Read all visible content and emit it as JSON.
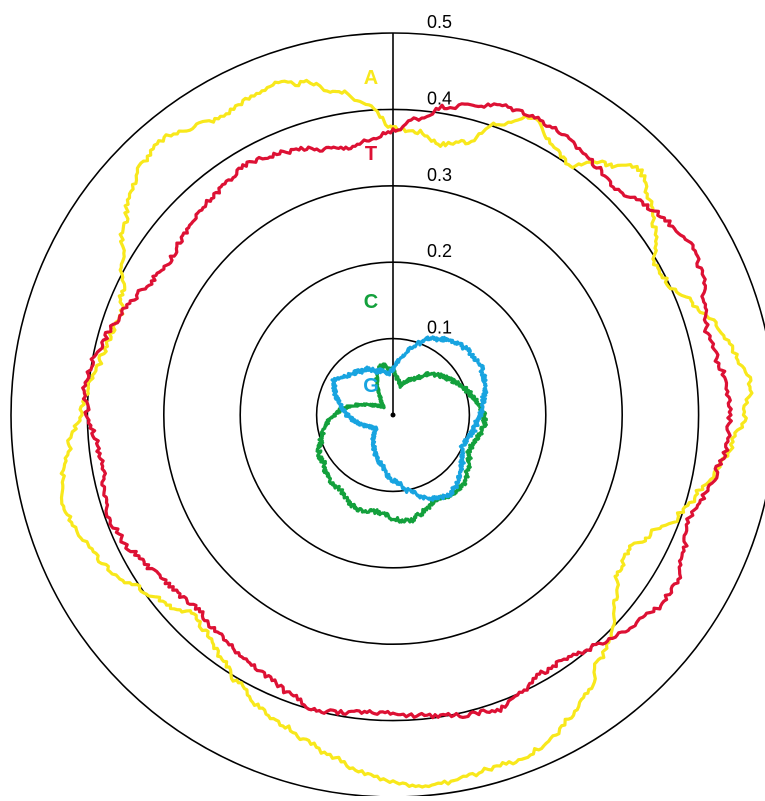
{
  "chart_data": {
    "type": "polar-line",
    "rmax": 0.5,
    "radial_ticks": [
      "0.1",
      "0.2",
      "0.3",
      "0.4",
      "0.5"
    ],
    "radial_tick_values": [
      0.1,
      0.2,
      0.3,
      0.4,
      0.5
    ],
    "legend": "labels-on-plot",
    "series": [
      {
        "name": "A",
        "color": "#f8e81c",
        "r": [
          0.375,
          0.372,
          0.36,
          0.37,
          0.405,
          0.43,
          0.412,
          0.4,
          0.43,
          0.455,
          0.44,
          0.42,
          0.395,
          0.4,
          0.42,
          0.44,
          0.455,
          0.47,
          0.46,
          0.445,
          0.43,
          0.41,
          0.395,
          0.37,
          0.355,
          0.36,
          0.38,
          0.405,
          0.42,
          0.445,
          0.46,
          0.475,
          0.48,
          0.48,
          0.485,
          0.49,
          0.48,
          0.47,
          0.455,
          0.44,
          0.43,
          0.42,
          0.405,
          0.39,
          0.375,
          0.37,
          0.385,
          0.4,
          0.42,
          0.43,
          0.44,
          0.45,
          0.44,
          0.425,
          0.41,
          0.4,
          0.39,
          0.385,
          0.38,
          0.39,
          0.41,
          0.43,
          0.45,
          0.465,
          0.47,
          0.46,
          0.45,
          0.455,
          0.46,
          0.45,
          0.43,
          0.41
        ]
      },
      {
        "name": "T",
        "color": "#dd1134",
        "r": [
          0.372,
          0.39,
          0.41,
          0.42,
          0.43,
          0.432,
          0.43,
          0.425,
          0.42,
          0.415,
          0.43,
          0.44,
          0.45,
          0.445,
          0.435,
          0.425,
          0.43,
          0.44,
          0.44,
          0.44,
          0.43,
          0.42,
          0.41,
          0.42,
          0.43,
          0.43,
          0.42,
          0.41,
          0.4,
          0.39,
          0.39,
          0.4,
          0.41,
          0.405,
          0.4,
          0.395,
          0.39,
          0.39,
          0.395,
          0.4,
          0.39,
          0.38,
          0.375,
          0.37,
          0.365,
          0.36,
          0.365,
          0.37,
          0.38,
          0.39,
          0.395,
          0.39,
          0.385,
          0.39,
          0.4,
          0.405,
          0.4,
          0.39,
          0.38,
          0.37,
          0.36,
          0.355,
          0.36,
          0.365,
          0.37,
          0.375,
          0.38,
          0.375,
          0.37,
          0.36,
          0.355,
          0.36
        ]
      },
      {
        "name": "C",
        "color": "#13a03c",
        "r": [
          0.06,
          0.05,
          0.045,
          0.04,
          0.045,
          0.05,
          0.055,
          0.06,
          0.07,
          0.075,
          0.08,
          0.085,
          0.09,
          0.095,
          0.1,
          0.105,
          0.11,
          0.115,
          0.12,
          0.12,
          0.118,
          0.115,
          0.11,
          0.11,
          0.115,
          0.12,
          0.125,
          0.13,
          0.13,
          0.128,
          0.125,
          0.125,
          0.13,
          0.135,
          0.14,
          0.138,
          0.135,
          0.13,
          0.128,
          0.13,
          0.132,
          0.13,
          0.125,
          0.12,
          0.12,
          0.118,
          0.115,
          0.11,
          0.11,
          0.108,
          0.1,
          0.095,
          0.09,
          0.085,
          0.075,
          0.07,
          0.06,
          0.05,
          0.04,
          0.03,
          0.025,
          0.02,
          0.018,
          0.02,
          0.025,
          0.03,
          0.04,
          0.05,
          0.06,
          0.065,
          0.065,
          0.06
        ]
      },
      {
        "name": "G",
        "color": "#18a4e0",
        "r": [
          0.06,
          0.07,
          0.08,
          0.09,
          0.1,
          0.11,
          0.115,
          0.12,
          0.125,
          0.128,
          0.13,
          0.13,
          0.132,
          0.13,
          0.128,
          0.125,
          0.12,
          0.118,
          0.115,
          0.11,
          0.108,
          0.105,
          0.1,
          0.1,
          0.105,
          0.11,
          0.115,
          0.12,
          0.125,
          0.128,
          0.125,
          0.12,
          0.115,
          0.105,
          0.1,
          0.09,
          0.085,
          0.08,
          0.07,
          0.065,
          0.06,
          0.055,
          0.05,
          0.045,
          0.04,
          0.035,
          0.03,
          0.03,
          0.032,
          0.035,
          0.04,
          0.045,
          0.05,
          0.055,
          0.06,
          0.065,
          0.07,
          0.075,
          0.08,
          0.085,
          0.09,
          0.085,
          0.08,
          0.075,
          0.075,
          0.07,
          0.07,
          0.065,
          0.06,
          0.06,
          0.055,
          0.055
        ]
      }
    ]
  }
}
